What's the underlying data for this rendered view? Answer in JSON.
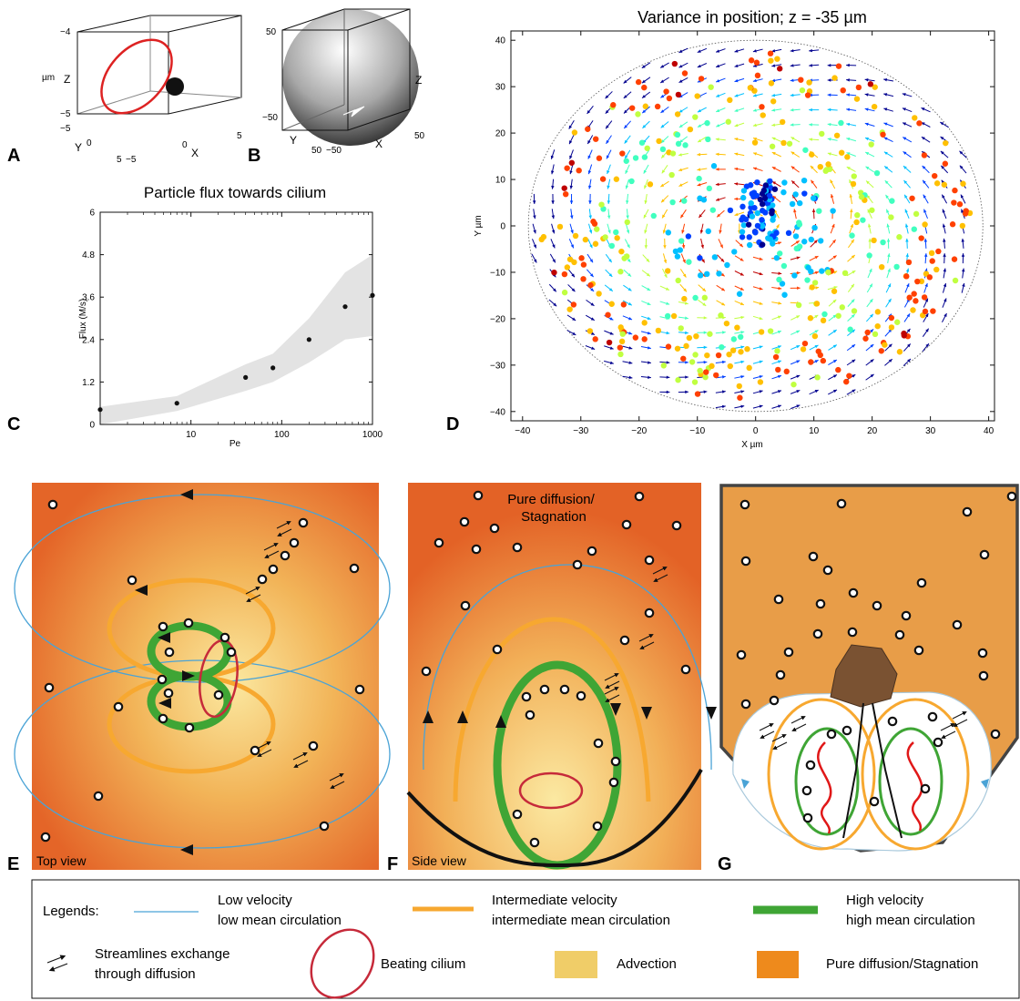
{
  "panels": {
    "a": {
      "letter": "A",
      "unit": "µm",
      "z_label": "Z",
      "y_label": "Y",
      "x_label": "X",
      "z_ticks": [
        "−4",
        "−5"
      ],
      "y_ticks": [
        "−5",
        "0",
        "5"
      ],
      "x_ticks": [
        "−5",
        "0",
        "5"
      ]
    },
    "b": {
      "letter": "B",
      "unit": "µm",
      "z_label": "Z",
      "y_label": "Y",
      "x_label": "X",
      "z_ticks": [
        "50",
        "−50"
      ],
      "y_ticks": [
        "50"
      ],
      "x_ticks": [
        "−50",
        "50"
      ]
    },
    "c": {
      "letter": "C"
    },
    "d": {
      "letter": "D"
    },
    "e": {
      "letter": "E",
      "caption": "Top view"
    },
    "f": {
      "letter": "F",
      "caption": "Side view",
      "top_label_1": "Pure diffusion/",
      "top_label_2": "Stagnation"
    },
    "g": {
      "letter": "G"
    }
  },
  "chart_data": [
    {
      "type": "scatter",
      "title": "Particle flux towards cilium",
      "xlabel": "Pe",
      "ylabel": "Flux (M/s)",
      "x_scale": "log",
      "xlim": [
        1,
        1000
      ],
      "ylim": [
        0,
        6
      ],
      "x_tick_labels": [
        "10",
        "100",
        "1000"
      ],
      "y_tick_labels": [
        "0",
        "1.2",
        "2.4",
        "3.6",
        "4.8",
        "6"
      ],
      "points": [
        {
          "x": 1,
          "y": 0.42
        },
        {
          "x": 7,
          "y": 0.6
        },
        {
          "x": 40,
          "y": 1.33
        },
        {
          "x": 80,
          "y": 1.6
        },
        {
          "x": 200,
          "y": 2.4
        },
        {
          "x": 500,
          "y": 3.33
        },
        {
          "x": 1000,
          "y": 3.65
        }
      ],
      "band_upper": [
        0.5,
        0.8,
        1.7,
        2.0,
        3.0,
        4.3,
        4.8
      ],
      "band_lower": [
        0.0,
        0.38,
        0.95,
        1.2,
        1.75,
        2.4,
        2.5
      ],
      "band_color": "#e3e3e3"
    },
    {
      "type": "vector-field",
      "title": "Variance in position; z = -35 µm",
      "xlabel": "X µm",
      "ylabel": "Y µm",
      "xlim": [
        -42,
        41
      ],
      "ylim": [
        -42,
        42
      ],
      "x_tick_labels": [
        "−40",
        "−30",
        "−20",
        "−10",
        "0",
        "10",
        "20",
        "30",
        "40"
      ],
      "y_tick_labels": [
        "−40",
        "−30",
        "−20",
        "−10",
        "0",
        "10",
        "20",
        "30",
        "40"
      ],
      "boundary_radius_x": 39,
      "boundary_radius_y": 40,
      "colormap": [
        "#00008f",
        "#0040ff",
        "#00c0ff",
        "#40ffbf",
        "#c0ff40",
        "#ffc000",
        "#ff4000",
        "#bf0000"
      ]
    }
  ],
  "legend": {
    "title": "Legends:",
    "low_1": "Low velocity",
    "low_2": "low mean circulation",
    "mid_1": "Intermediate velocity",
    "mid_2": "intermediate mean circulation",
    "high_1": "High velocity",
    "high_2": "high mean circulation",
    "exchange_1": "Streamlines exchange",
    "exchange_2": "through diffusion",
    "cilium": "Beating cilium",
    "advection": "Advection",
    "stagnation": "Pure diffusion/Stagnation"
  },
  "colors": {
    "low": "#4aa3d6",
    "mid": "#f7a830",
    "high": "#3fa535",
    "cilium": "#c62a3a",
    "advection": "#f0cd68",
    "stagnation": "#ee8a1c",
    "diffusion_bg": "#e6692a"
  }
}
